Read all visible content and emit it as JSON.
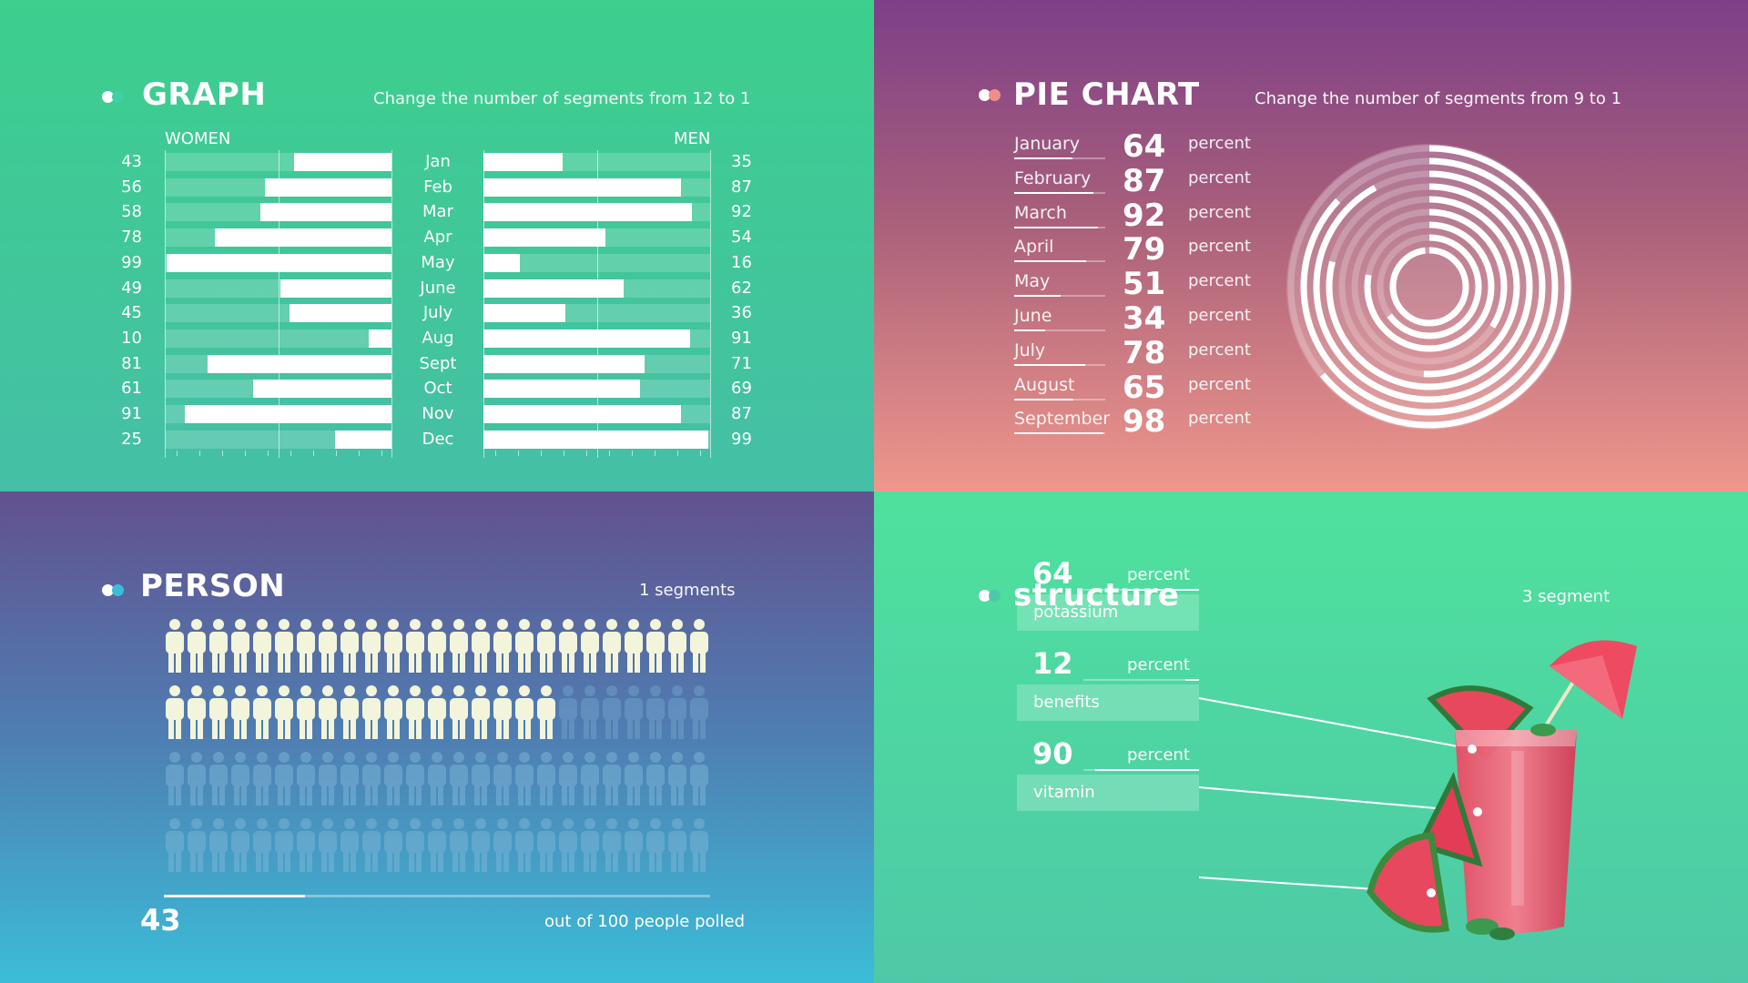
{
  "graph": {
    "title": "GRAPH",
    "subtitle": "Change the number of segments from 12 to 1",
    "women_label": "WOMEN",
    "men_label": "MEN",
    "colors": {
      "dot_a": "#ffffff",
      "dot_b": "#3fd1a6"
    }
  },
  "pie": {
    "title": "PIE CHART",
    "subtitle": "Change the number of segments from 9 to 1",
    "unit": "percent",
    "colors": {
      "dot_a": "#ffffff",
      "dot_b": "#f28e8a"
    }
  },
  "person": {
    "title": "PERSON",
    "subtitle": "1 segments",
    "count": "43",
    "caption": "out of 100 people polled",
    "colors": {
      "dot_a": "#ffffff",
      "dot_b": "#3bbdd8",
      "person_on": "#f2f5dc",
      "person_off": "#7fb6d8"
    }
  },
  "structure": {
    "title": "structure",
    "subtitle": "3 segment",
    "unit": "percent",
    "items": [
      {
        "value": "64",
        "label": "potassium"
      },
      {
        "value": "12",
        "label": "benefits"
      },
      {
        "value": "90",
        "label": "vitamin"
      }
    ],
    "colors": {
      "dot_a": "#ffffff",
      "dot_b": "#4ec9a7"
    }
  },
  "chart_data": [
    {
      "type": "bar",
      "title": "GRAPH",
      "categories": [
        "Jan",
        "Feb",
        "Mar",
        "Apr",
        "May",
        "June",
        "July",
        "Aug",
        "Sept",
        "Oct",
        "Nov",
        "Dec"
      ],
      "series": [
        {
          "name": "WOMEN",
          "values": [
            43,
            56,
            58,
            78,
            99,
            49,
            45,
            10,
            81,
            61,
            91,
            25
          ]
        },
        {
          "name": "MEN",
          "values": [
            35,
            87,
            92,
            54,
            16,
            62,
            36,
            91,
            71,
            69,
            87,
            99
          ]
        }
      ],
      "ylim": [
        0,
        100
      ]
    },
    {
      "type": "pie",
      "title": "PIE CHART",
      "categories": [
        "January",
        "February",
        "March",
        "April",
        "May",
        "June",
        "July",
        "August",
        "September"
      ],
      "values": [
        64,
        87,
        92,
        79,
        51,
        34,
        78,
        65,
        98
      ]
    },
    {
      "type": "bar",
      "title": "PERSON",
      "categories": [
        "people polled"
      ],
      "values": [
        43
      ],
      "ylim": [
        0,
        100
      ]
    },
    {
      "type": "bar",
      "title": "structure",
      "categories": [
        "potassium",
        "benefits",
        "vitamin"
      ],
      "values": [
        64,
        12,
        90
      ],
      "ylim": [
        0,
        100
      ]
    }
  ]
}
